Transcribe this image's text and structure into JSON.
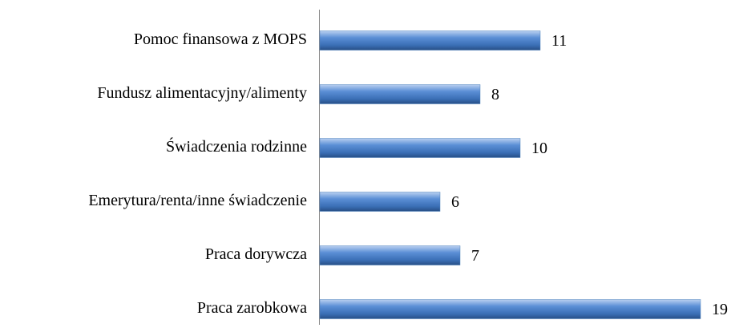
{
  "chart_data": {
    "type": "bar",
    "orientation": "horizontal",
    "categories": [
      "Pomoc finansowa z MOPS",
      "Fundusz alimentacyjny/alimenty",
      "Świadczenia rodzinne",
      "Emerytura/renta/inne świadczenie",
      "Praca dorywcza",
      "Praca zarobkowa"
    ],
    "values": [
      11,
      8,
      10,
      6,
      7,
      19
    ],
    "color": "#4f81bd"
  }
}
